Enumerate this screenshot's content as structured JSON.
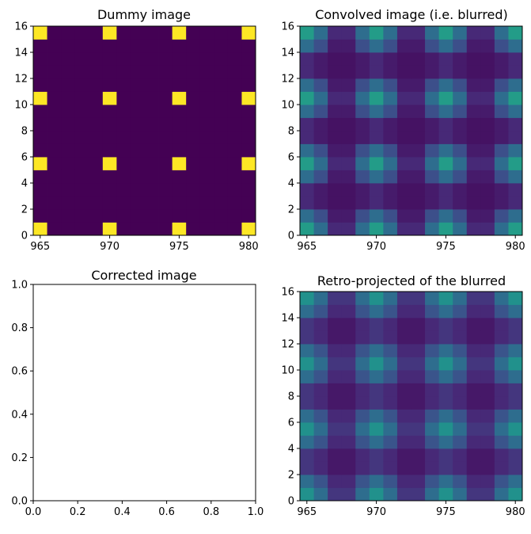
{
  "chart_data": [
    {
      "type": "heatmap",
      "title": "Dummy image",
      "x": [
        964.5,
        980.5
      ],
      "ylim": [
        0,
        16
      ],
      "xticks": [
        965,
        970,
        975,
        980
      ],
      "yticks": [
        0,
        2,
        4,
        6,
        8,
        10,
        12,
        14,
        16
      ],
      "colormap": "viridis",
      "grid": false,
      "pattern": "delta"
    },
    {
      "type": "heatmap",
      "title": "Convolved image (i.e. blurred)",
      "x": [
        964.5,
        980.5
      ],
      "ylim": [
        0,
        16
      ],
      "xticks": [
        965,
        970,
        975,
        980
      ],
      "yticks": [
        0,
        2,
        4,
        6,
        8,
        10,
        12,
        14,
        16
      ],
      "colormap": "viridis",
      "grid": false,
      "pattern": "blurred"
    },
    {
      "type": "heatmap",
      "title": "Corrected image",
      "xlim": [
        0.0,
        1.0
      ],
      "ylim": [
        0.0,
        1.0
      ],
      "xticks": [
        "0.0",
        "0.2",
        "0.4",
        "0.6",
        "0.8",
        "1.0"
      ],
      "yticks": [
        "0.0",
        "0.2",
        "0.4",
        "0.6",
        "0.8",
        "1.0"
      ],
      "grid": false,
      "pattern": "empty"
    },
    {
      "type": "heatmap",
      "title": "Retro-projected of the blurred",
      "x": [
        964.5,
        980.5
      ],
      "ylim": [
        0,
        16
      ],
      "xticks": [
        965,
        970,
        975,
        980
      ],
      "yticks": [
        0,
        2,
        4,
        6,
        8,
        10,
        12,
        14,
        16
      ],
      "colormap": "viridis",
      "grid": false,
      "pattern": "retro"
    }
  ],
  "colors": {
    "background": "#440154",
    "bright": "#fde725",
    "teal": "#21918c",
    "blue": "#3b528b"
  }
}
